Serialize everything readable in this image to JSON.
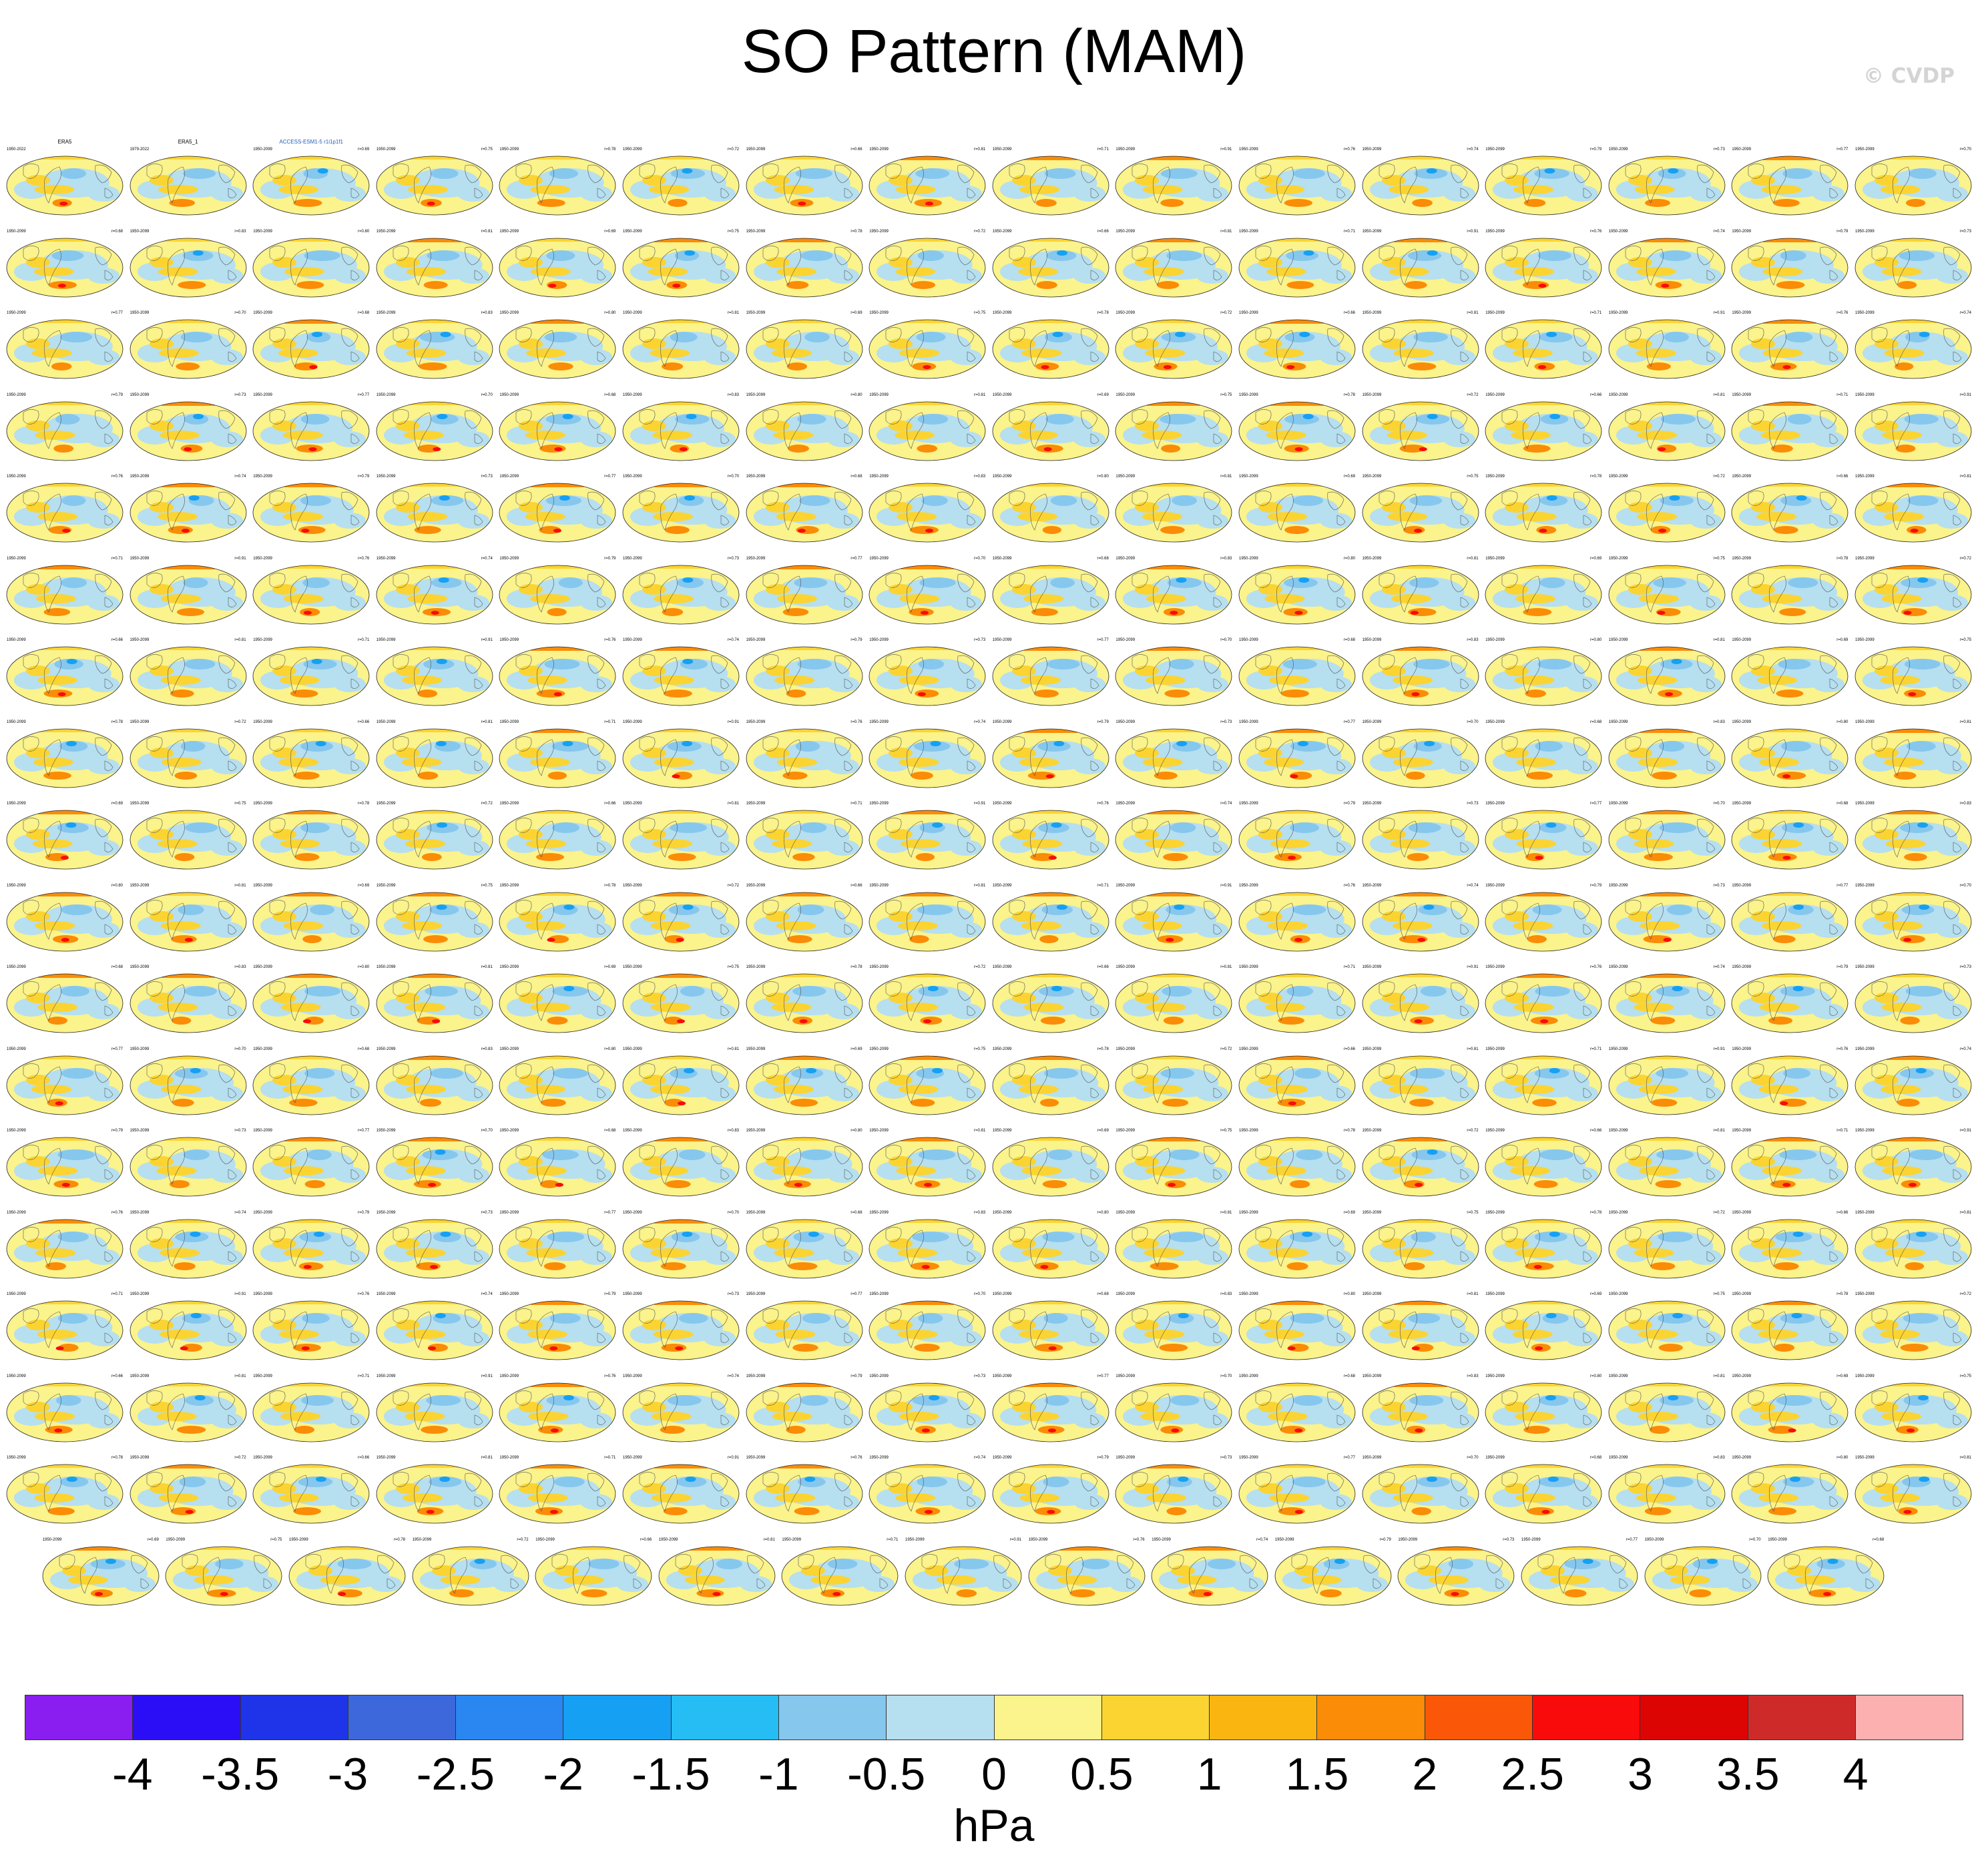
{
  "title": "SO Pattern (MAM)",
  "watermark": "© CVDP",
  "chart_data": {
    "type": "heatmap",
    "title": "SO Pattern (MAM)",
    "projection": "Robinson (global)",
    "units": "hPa",
    "colorbar": {
      "labels": [
        "-4",
        "-3.5",
        "-3",
        "-2.5",
        "-2",
        "-1.5",
        "-1",
        "-0.5",
        "0",
        "0.5",
        "1",
        "1.5",
        "2",
        "2.5",
        "3",
        "3.5",
        "4"
      ],
      "colors": [
        "#8a1df0",
        "#2b0ef5",
        "#1f34e8",
        "#3c68dc",
        "#2a87f2",
        "#16a0f4",
        "#25bdf3",
        "#86c7ee",
        "#b6dff0",
        "#fbf38b",
        "#fbd431",
        "#fbb511",
        "#fa8c07",
        "#fa5808",
        "#f90b0b",
        "#dd0404",
        "#cf2a2a",
        "#fdb0b0"
      ]
    },
    "panel_rows": 18,
    "panels_per_row": [
      16,
      16,
      16,
      16,
      16,
      16,
      16,
      16,
      16,
      16,
      16,
      16,
      16,
      16,
      16,
      16,
      16,
      15
    ],
    "panel_titles": [
      "ERA5",
      "ERA5_1",
      "ACCESS-ESM1-5 r1i1p1f1"
    ],
    "panel_years": [
      "1950-2022",
      "1979-2022",
      "1950-2099"
    ],
    "pattern_correlations": [
      "r=0.80",
      "r=0.81",
      "r=0.69",
      "r=0.75",
      "r=0.78",
      "r=0.72",
      "r=0.66",
      "r=0.81",
      "r=0.71",
      "r=0.91",
      "r=0.76",
      "r=0.74",
      "r=0.79",
      "r=0.73",
      "r=0.77",
      "r=0.70",
      "r=0.68",
      "r=0.83"
    ]
  }
}
